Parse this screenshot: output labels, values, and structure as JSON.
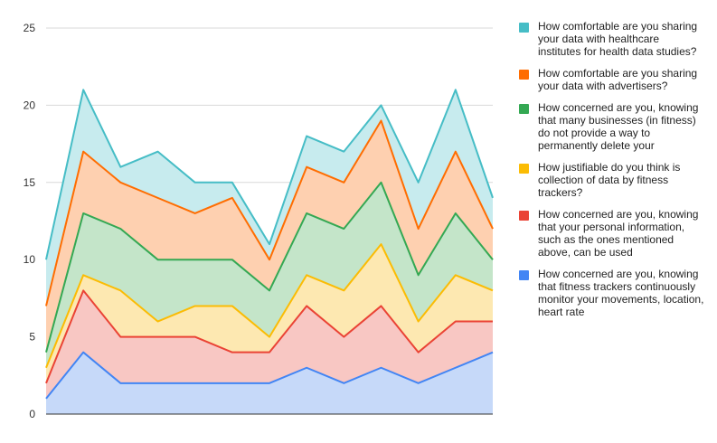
{
  "chart_data": {
    "type": "area",
    "stacked": true,
    "x": [
      1,
      2,
      3,
      4,
      5,
      6,
      7,
      8,
      9,
      10,
      11,
      12,
      13
    ],
    "ylim": [
      0,
      25
    ],
    "yticks": [
      0,
      5,
      10,
      15,
      20,
      25
    ],
    "grid": true,
    "legend_position": "right",
    "series": [
      {
        "name": "How concerned are you, knowing that fitness trackers continuously monitor your movements, location, heart rate",
        "color": "#4285f4",
        "fill": "#c6d9f9",
        "values": [
          1,
          4,
          2,
          2,
          2,
          2,
          2,
          3,
          2,
          3,
          2,
          3,
          4
        ]
      },
      {
        "name": "How concerned are you, knowing that your personal information, such as the ones mentioned above, can be used",
        "color": "#ea4335",
        "fill": "#f8c7c3",
        "values": [
          1,
          4,
          3,
          3,
          3,
          2,
          2,
          4,
          3,
          4,
          2,
          3,
          2
        ]
      },
      {
        "name": "How justifiable do you think is collection of data by fitness trackers?",
        "color": "#fbbc04",
        "fill": "#fde8b1",
        "values": [
          1,
          1,
          3,
          1,
          2,
          3,
          1,
          2,
          3,
          4,
          2,
          3,
          2
        ]
      },
      {
        "name": "How concerned are you, knowing that many businesses (in fitness) do not provide a way to permanently delete your",
        "color": "#34a853",
        "fill": "#c4e5c9",
        "values": [
          1,
          4,
          4,
          4,
          3,
          3,
          3,
          4,
          4,
          4,
          3,
          4,
          2
        ]
      },
      {
        "name": "How comfortable are you sharing your data with advertisers?",
        "color": "#ff6d01",
        "fill": "#fed0b0",
        "values": [
          3,
          4,
          3,
          4,
          3,
          4,
          2,
          3,
          3,
          4,
          3,
          4,
          2
        ]
      },
      {
        "name": "How comfortable are you sharing your data with healthcare institutes for health data studies?",
        "color": "#46bdc6",
        "fill": "#c7ebee",
        "values": [
          3,
          4,
          1,
          3,
          2,
          1,
          1,
          2,
          2,
          1,
          3,
          4,
          2
        ]
      }
    ]
  }
}
